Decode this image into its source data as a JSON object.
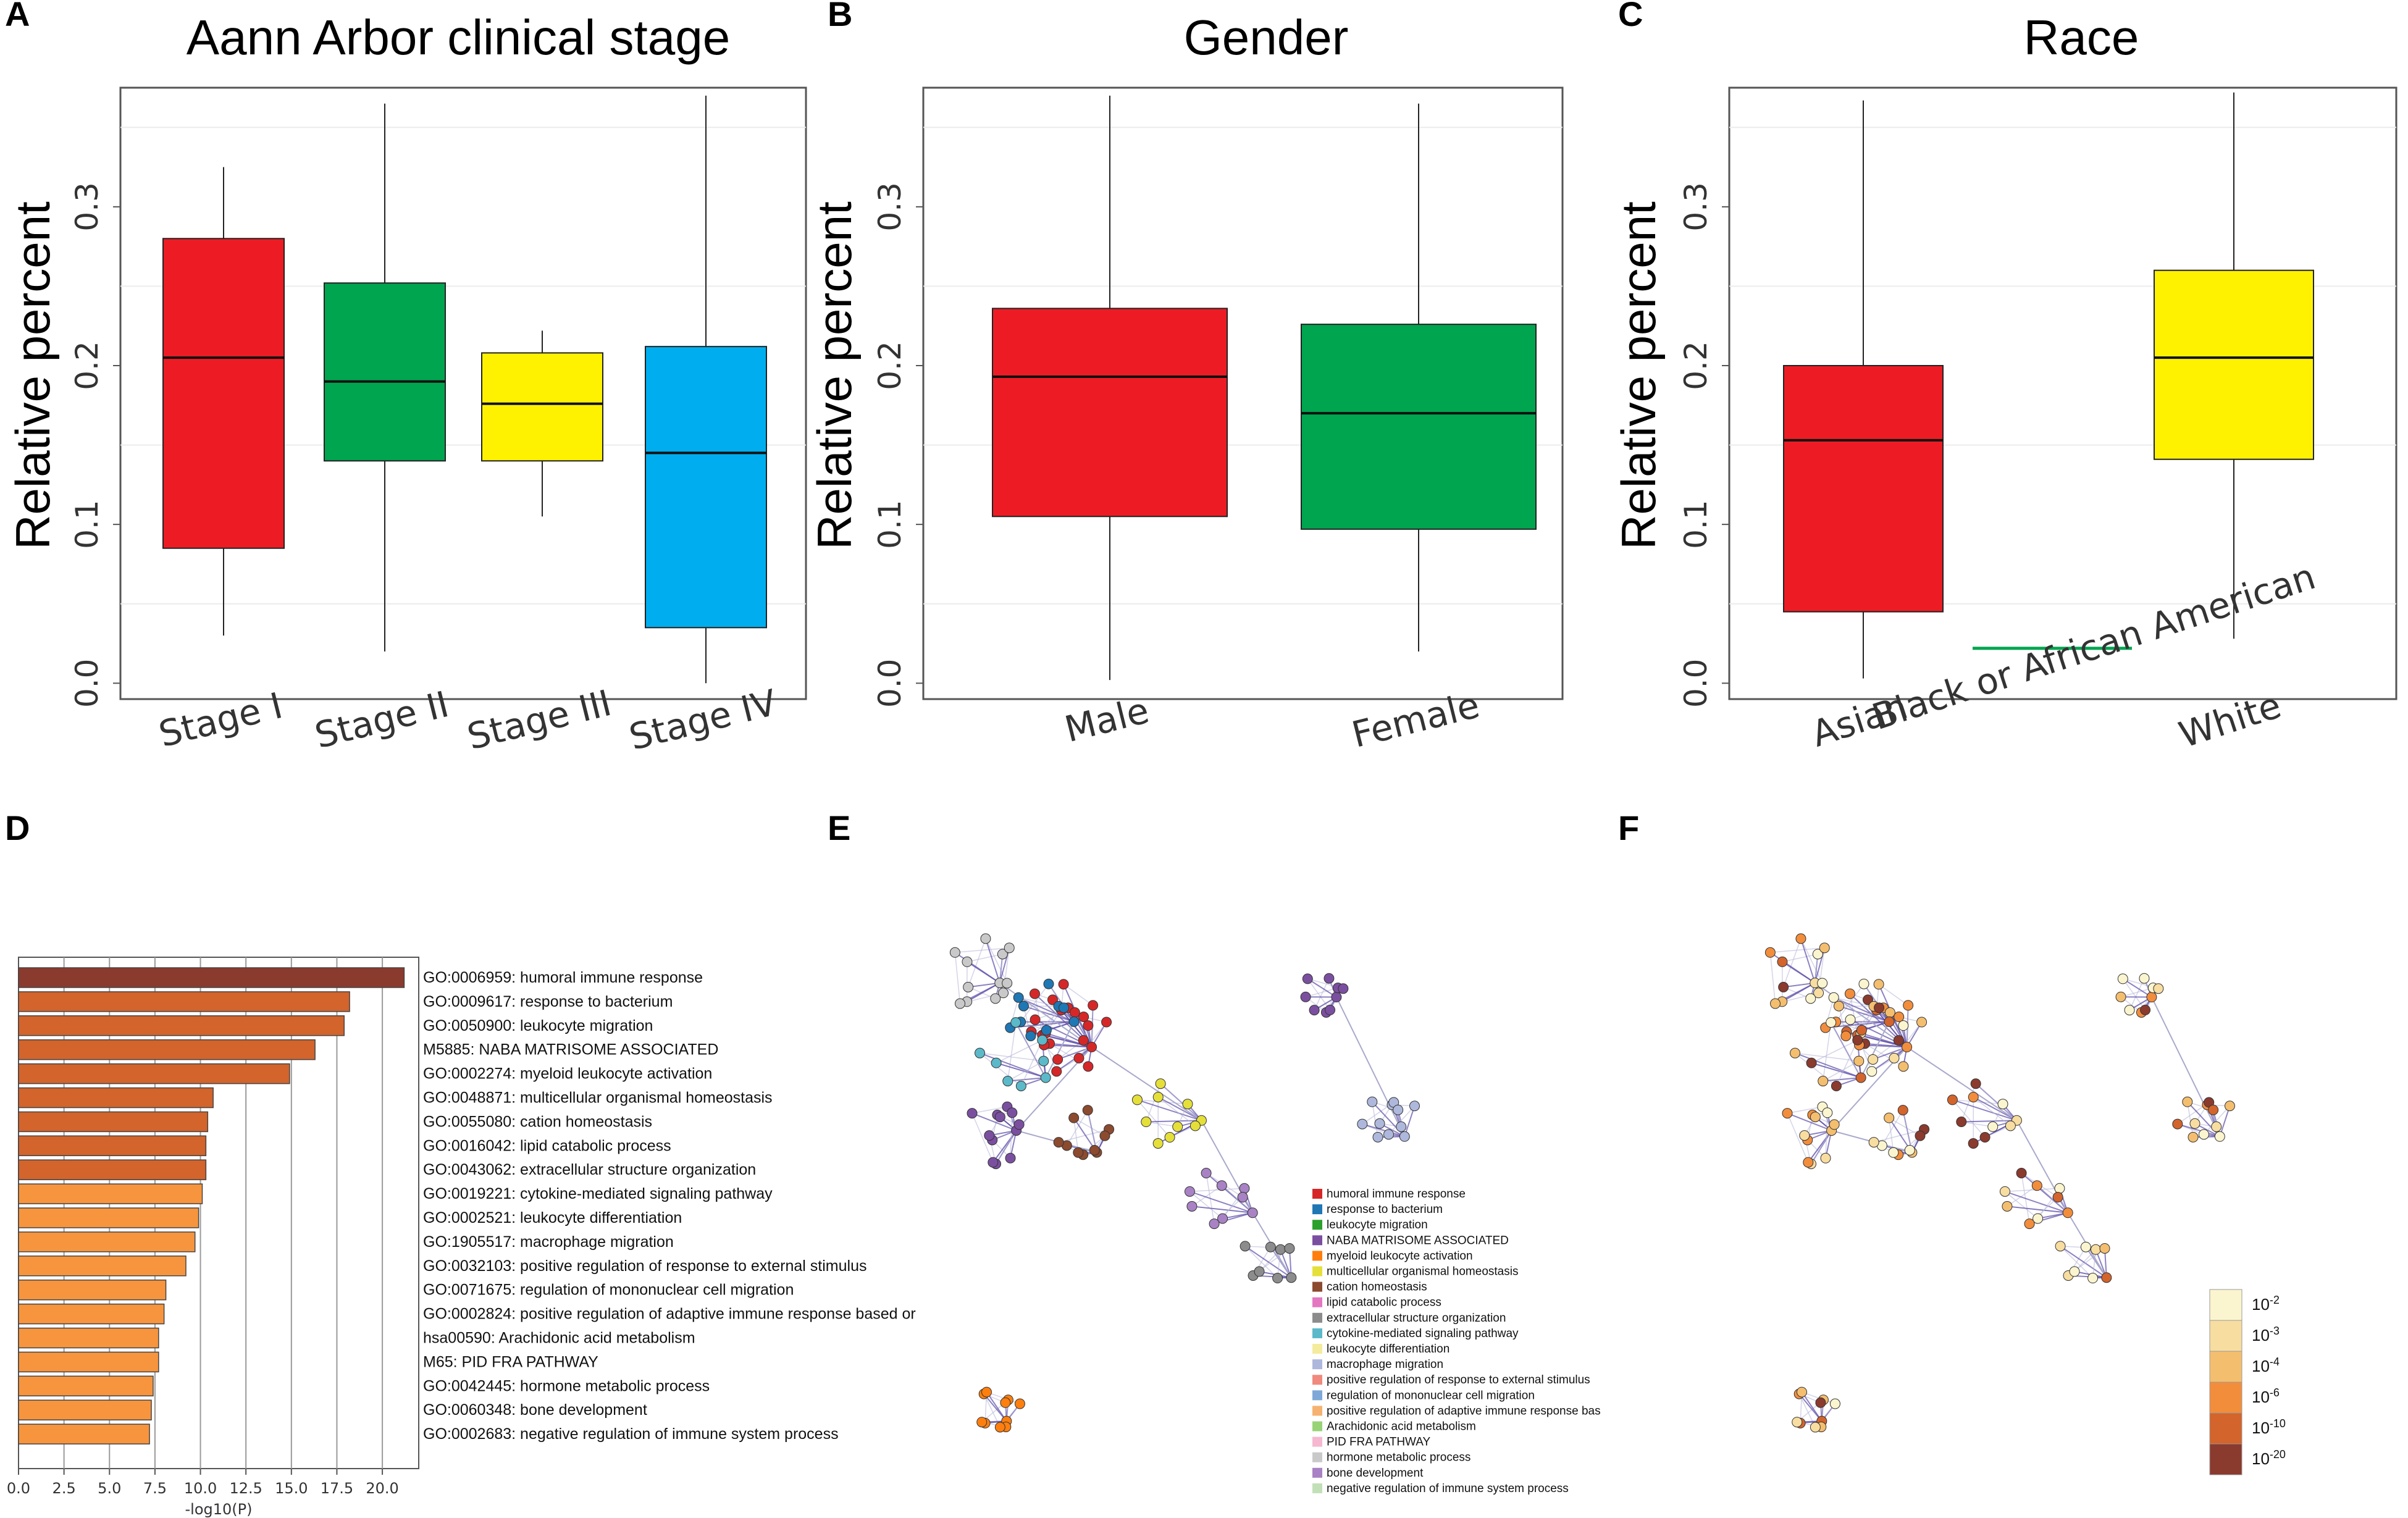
{
  "panel_labels": [
    "A",
    "B",
    "C",
    "D",
    "E",
    "F"
  ],
  "colors": {
    "red": "#ED1C24",
    "green": "#00A54F",
    "yellow": "#FFF200",
    "blue": "#00AEEF",
    "bar_dark": "#8B3A2E",
    "bar_mid": "#D2642C",
    "bar_light": "#F7953E"
  },
  "chart_data": [
    {
      "id": "A",
      "type": "boxplot",
      "title": "Aann Arbor clinical stage",
      "ylabel": "Relative percent",
      "xlabel": "",
      "ylim": [
        -0.01,
        0.375
      ],
      "yticks": [
        "0.0",
        "0.1",
        "0.2",
        "0.3"
      ],
      "yticks_values": [
        0.0,
        0.1,
        0.2,
        0.3
      ],
      "categories": [
        "Stage I",
        "Stage II",
        "Stage III",
        "Stage IV"
      ],
      "boxes": [
        {
          "min": 0.03,
          "q1": 0.085,
          "median": 0.205,
          "q3": 0.28,
          "max": 0.325,
          "color": "#ED1C24"
        },
        {
          "min": 0.02,
          "q1": 0.14,
          "median": 0.19,
          "q3": 0.252,
          "max": 0.365,
          "color": "#00A54F"
        },
        {
          "min": 0.105,
          "q1": 0.14,
          "median": 0.176,
          "q3": 0.208,
          "max": 0.222,
          "color": "#FFF200"
        },
        {
          "min": 0.0,
          "q1": 0.035,
          "median": 0.145,
          "q3": 0.212,
          "max": 0.37,
          "color": "#00AEEF"
        }
      ]
    },
    {
      "id": "B",
      "type": "boxplot",
      "title": "Gender",
      "ylabel": "Relative percent",
      "xlabel": "",
      "ylim": [
        -0.01,
        0.375
      ],
      "yticks": [
        "0.0",
        "0.1",
        "0.2",
        "0.3"
      ],
      "yticks_values": [
        0.0,
        0.1,
        0.2,
        0.3
      ],
      "categories": [
        "Male",
        "Female"
      ],
      "boxes": [
        {
          "min": 0.002,
          "q1": 0.105,
          "median": 0.193,
          "q3": 0.236,
          "max": 0.37,
          "color": "#ED1C24"
        },
        {
          "min": 0.02,
          "q1": 0.097,
          "median": 0.17,
          "q3": 0.226,
          "max": 0.365,
          "color": "#00A54F"
        }
      ]
    },
    {
      "id": "C",
      "type": "boxplot",
      "title": "Race",
      "ylabel": "Relative percent",
      "xlabel": "",
      "ylim": [
        -0.01,
        0.375
      ],
      "yticks": [
        "0.0",
        "0.1",
        "0.2",
        "0.3"
      ],
      "yticks_values": [
        0.0,
        0.1,
        0.2,
        0.3
      ],
      "categories": [
        "Asian",
        "Black or African American",
        "White"
      ],
      "boxes": [
        {
          "min": 0.003,
          "q1": 0.045,
          "median": 0.153,
          "q3": 0.2,
          "max": 0.367,
          "color": "#ED1C24"
        },
        {
          "min": 0.022,
          "q1": 0.022,
          "median": 0.022,
          "q3": 0.022,
          "max": 0.022,
          "color": "#00A54F"
        },
        {
          "min": 0.028,
          "q1": 0.141,
          "median": 0.205,
          "q3": 0.26,
          "max": 0.372,
          "color": "#FFF200"
        }
      ]
    },
    {
      "id": "D",
      "type": "bar",
      "orientation": "horizontal",
      "xlabel": "-log10(P)",
      "ylabel": "",
      "xlim": [
        0,
        22
      ],
      "xticks": [
        "0.0",
        "2.5",
        "5.0",
        "7.5",
        "10.0",
        "12.5",
        "15.0",
        "17.5",
        "20.0"
      ],
      "xticks_values": [
        0,
        2.5,
        5,
        7.5,
        10,
        12.5,
        15,
        17.5,
        20
      ],
      "categories": [
        "GO:0006959: humoral immune response",
        "GO:0009617: response to bacterium",
        "GO:0050900: leukocyte migration",
        "M5885: NABA MATRISOME ASSOCIATED",
        "GO:0002274: myeloid leukocyte activation",
        "GO:0048871: multicellular organismal homeostasis",
        "GO:0055080: cation homeostasis",
        "GO:0016042: lipid catabolic process",
        "GO:0043062: extracellular structure organization",
        "GO:0019221: cytokine-mediated signaling pathway",
        "GO:0002521: leukocyte differentiation",
        "GO:1905517: macrophage migration",
        "GO:0032103: positive regulation of response to external stimulus",
        "GO:0071675: regulation of mononuclear cell migration",
        "GO:0002824: positive regulation of adaptive immune response based or",
        "hsa00590: Arachidonic acid metabolism",
        "M65: PID FRA PATHWAY",
        "GO:0042445: hormone metabolic process",
        "GO:0060348: bone development",
        "GO:0002683: negative regulation of immune system process"
      ],
      "values": [
        21.2,
        18.2,
        17.9,
        16.3,
        14.9,
        10.7,
        10.4,
        10.3,
        10.3,
        10.1,
        9.9,
        9.7,
        9.2,
        8.1,
        8.0,
        7.7,
        7.7,
        7.4,
        7.3,
        7.2
      ],
      "bar_colors": [
        "#8B3A2E",
        "#D2642C",
        "#D2642C",
        "#D2642C",
        "#D2642C",
        "#D2642C",
        "#D2642C",
        "#D2642C",
        "#D2642C",
        "#F7953E",
        "#F7953E",
        "#F7953E",
        "#F7953E",
        "#F7953E",
        "#F7953E",
        "#F7953E",
        "#F7953E",
        "#F7953E",
        "#F7953E",
        "#F7953E"
      ]
    }
  ],
  "network_legend": {
    "items": [
      {
        "label": "humoral immune response",
        "color": "#D62728"
      },
      {
        "label": "response to bacterium",
        "color": "#1F77B4"
      },
      {
        "label": "leukocyte migration",
        "color": "#2CA02C"
      },
      {
        "label": "NABA MATRISOME ASSOCIATED",
        "color": "#7B4FA0"
      },
      {
        "label": "myeloid leukocyte activation",
        "color": "#FF7F0E"
      },
      {
        "label": "multicellular organismal homeostasis",
        "color": "#E5DF3A"
      },
      {
        "label": "cation homeostasis",
        "color": "#8C4A2F"
      },
      {
        "label": "lipid catabolic process",
        "color": "#E377C2"
      },
      {
        "label": "extracellular structure organization",
        "color": "#8C8C8C"
      },
      {
        "label": "cytokine-mediated signaling pathway",
        "color": "#5BB9C9"
      },
      {
        "label": "leukocyte differentiation",
        "color": "#F4EB9C"
      },
      {
        "label": "macrophage migration",
        "color": "#AEB8DC"
      },
      {
        "label": "positive regulation of response to external stimulus",
        "color": "#F08A7E"
      },
      {
        "label": "regulation of mononuclear cell migration",
        "color": "#7FA8D8"
      },
      {
        "label": "positive regulation of adaptive immune response bas",
        "color": "#F6B270"
      },
      {
        "label": "Arachidonic acid metabolism",
        "color": "#98D377"
      },
      {
        "label": "PID FRA PATHWAY",
        "color": "#F5B8D0"
      },
      {
        "label": "hormone metabolic process",
        "color": "#C9C9C9"
      },
      {
        "label": "bone development",
        "color": "#A882C4"
      },
      {
        "label": "negative regulation of immune system process",
        "color": "#C2E0B8"
      }
    ]
  },
  "pvalue_legend": {
    "items": [
      {
        "label": "10",
        "exp": "-2",
        "color": "#FBF5CF"
      },
      {
        "label": "10",
        "exp": "-3",
        "color": "#F8DDA0"
      },
      {
        "label": "10",
        "exp": "-4",
        "color": "#F4BE6F"
      },
      {
        "label": "10",
        "exp": "-6",
        "color": "#F28D3C"
      },
      {
        "label": "10",
        "exp": "-10",
        "color": "#D2642C"
      },
      {
        "label": "10",
        "exp": "-20",
        "color": "#8B3A2E"
      }
    ]
  }
}
